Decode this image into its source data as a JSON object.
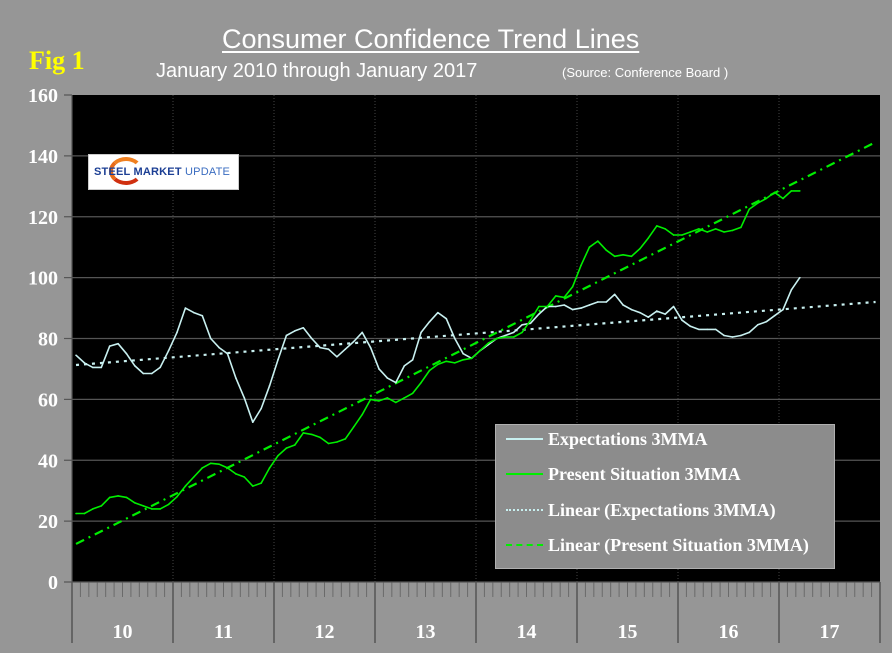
{
  "figure_label": "Fig 1",
  "logo": {
    "bold": "STEEL MARKET",
    "light": "UPDATE"
  },
  "chart_data": {
    "type": "line",
    "title": "Consumer Confidence Trend Lines",
    "subtitle": "January 2010 through January 2017",
    "source": "(Source: Conference Board )",
    "xlabel": "",
    "ylabel": "",
    "ylim": [
      0,
      160
    ],
    "yticks": [
      0,
      20,
      40,
      60,
      80,
      100,
      120,
      140,
      160
    ],
    "xtick_labels": [
      "10",
      "11",
      "12",
      "13",
      "14",
      "15",
      "16",
      "17"
    ],
    "x_range": [
      "Jan 2010",
      "Dec 2017"
    ],
    "x_unit": "month index from Jan 2010",
    "grid": "horizontal solid, vertical dotted at year boundaries",
    "legend_position": "bottom-right",
    "series": [
      {
        "name": "Expectations 3MMA",
        "color": "#c8f0f0",
        "style": "solid",
        "values": [
          74.5,
          72,
          70.5,
          70.5,
          77.5,
          78.3,
          75,
          71,
          68.5,
          68.5,
          70.5,
          76,
          82,
          90,
          88.5,
          87.5,
          80,
          77,
          75,
          67,
          60.5,
          52.5,
          57,
          64.5,
          73,
          81,
          82.5,
          83.5,
          80,
          77,
          76.5,
          74,
          76.5,
          79,
          82,
          77,
          70,
          67,
          65.5,
          71,
          73,
          82,
          85.5,
          88.5,
          86.5,
          80,
          75,
          73.5,
          76,
          78,
          80,
          81,
          82,
          84.5,
          85,
          88,
          90.5,
          90.5,
          91,
          89.5,
          90,
          91,
          92,
          92,
          94.5,
          91,
          89.5,
          88.5,
          87,
          89,
          88,
          90.5,
          86,
          84,
          83,
          83,
          83,
          81,
          80.5,
          81,
          82,
          84.5,
          85.5,
          87.5,
          89.5,
          96,
          100
        ]
      },
      {
        "name": "Present Situation 3MMA",
        "color": "#00ee00",
        "style": "solid",
        "values": [
          22.5,
          22.5,
          24,
          25,
          27.8,
          28.3,
          27.8,
          26,
          25,
          24,
          24,
          25.5,
          28,
          31.5,
          34.5,
          37.5,
          39,
          38.7,
          37.5,
          35.5,
          34.5,
          31.5,
          32.5,
          37.5,
          41.5,
          44,
          45,
          49,
          48.5,
          47.5,
          45.5,
          46,
          47,
          51,
          55,
          60,
          59.5,
          60.5,
          59,
          60.5,
          62,
          65.5,
          69.5,
          71.5,
          72.5,
          72,
          73,
          73.5,
          76,
          78.5,
          80,
          80.5,
          80.5,
          82,
          86,
          90.5,
          90.5,
          94,
          93.5,
          97,
          104,
          110,
          112,
          109,
          107,
          107.5,
          107,
          109.5,
          113,
          117,
          116,
          114,
          114,
          115,
          116,
          115,
          116,
          115,
          115.5,
          116.5,
          122.5,
          124.5,
          126,
          128,
          126,
          128.5,
          128.5
        ]
      },
      {
        "name": "Linear (Expectations 3MMA)",
        "color": "#c8f0f0",
        "style": "dotted",
        "trend_start": {
          "x": 0,
          "y": 71.3
        },
        "trend_end": {
          "x": 95,
          "y": 92
        }
      },
      {
        "name": "Linear (Present Situation 3MMA)",
        "color": "#00ee00",
        "style": "dash-dot",
        "trend_start": {
          "x": 0,
          "y": 12.5
        },
        "trend_end": {
          "x": 95,
          "y": 144.5
        }
      }
    ]
  }
}
